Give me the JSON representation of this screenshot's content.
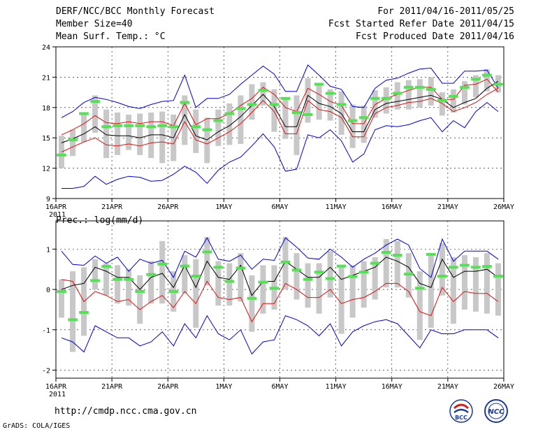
{
  "header": {
    "title": "DERF/NCC/BCC Monthly Forecast",
    "member": "Member Size=40",
    "variable": "Mean Surf. Temp.: °C",
    "period": "For 2011/04/16-2011/05/25",
    "started": "Fcst Started Refer Date 2011/04/15",
    "produced": "Fcst Produced Date 2011/04/16"
  },
  "footer": {
    "url": "http://cmdp.ncc.cma.gov.cn",
    "grads": "GrADS: COLA/IGES",
    "logo1": "BCC",
    "logo2": "NCC"
  },
  "colors": {
    "box": "#c8c8c8",
    "median": "#55e055",
    "mean": "#000000",
    "spread": "#e01010",
    "extreme": "#0000dd"
  },
  "chart_data": [
    {
      "type": "box-line",
      "title": "Mean Surf. Temp.: °C",
      "xlim": [
        0,
        40
      ],
      "x_ticks": [
        {
          "pos": 0,
          "label": "16APR"
        },
        {
          "pos": 5,
          "label": "21APR"
        },
        {
          "pos": 10,
          "label": "26APR"
        },
        {
          "pos": 15,
          "label": "1MAY"
        },
        {
          "pos": 20,
          "label": "6MAY"
        },
        {
          "pos": 25,
          "label": "11MAY"
        },
        {
          "pos": 30,
          "label": "16MAY"
        },
        {
          "pos": 35,
          "label": "21MAY"
        },
        {
          "pos": 40,
          "label": "26MAY"
        }
      ],
      "year_label": "2011",
      "ylim": [
        9,
        24
      ],
      "y_ticks": [
        9,
        12,
        15,
        18,
        21,
        24
      ],
      "series": {
        "max": [
          17.0,
          17.6,
          18.5,
          19.0,
          18.8,
          18.5,
          18.1,
          17.9,
          18.3,
          18.6,
          18.7,
          21.2,
          18.0,
          18.9,
          18.9,
          19.3,
          20.3,
          21.2,
          22.1,
          21.3,
          19.6,
          19.6,
          22.2,
          21.2,
          20.1,
          19.8,
          18.1,
          18.0,
          19.9,
          20.7,
          20.9,
          21.4,
          21.8,
          21.9,
          20.4,
          20.4,
          21.6,
          21.6,
          21.7,
          19.9
        ],
        "p75": [
          15.3,
          15.8,
          16.4,
          17.2,
          16.5,
          16.4,
          16.6,
          16.4,
          16.6,
          16.6,
          16.2,
          18.4,
          16.3,
          16.9,
          16.9,
          17.4,
          18.2,
          18.9,
          20.0,
          19.3,
          18.0,
          17.6,
          19.9,
          19.3,
          18.6,
          18.2,
          16.4,
          16.4,
          18.3,
          18.9,
          19.3,
          19.7,
          20.0,
          20.0,
          18.8,
          18.8,
          20.2,
          20.3,
          20.8,
          19.5
        ],
        "mean": [
          14.5,
          14.9,
          15.4,
          16.1,
          15.3,
          15.2,
          15.2,
          15.0,
          15.3,
          15.3,
          15.0,
          17.3,
          15.2,
          14.8,
          15.6,
          16.2,
          17.1,
          18.2,
          19.3,
          18.1,
          16.1,
          16.1,
          19.2,
          18.4,
          18.1,
          17.4,
          15.6,
          15.6,
          17.8,
          18.4,
          18.6,
          18.8,
          19.0,
          19.2,
          18.8,
          18.0,
          18.5,
          18.9,
          19.9,
          20.6
        ],
        "p25": [
          13.6,
          14.1,
          14.6,
          15.0,
          14.3,
          14.2,
          14.4,
          14.2,
          14.5,
          14.6,
          14.4,
          16.6,
          14.8,
          14.4,
          15.0,
          15.6,
          16.4,
          17.5,
          18.7,
          17.6,
          15.4,
          15.4,
          18.7,
          17.8,
          17.6,
          17.0,
          15.1,
          15.1,
          17.4,
          18.0,
          18.2,
          18.5,
          18.6,
          18.9,
          18.4,
          17.6,
          18.0,
          18.5,
          19.3,
          19.9
        ],
        "min": [
          10.0,
          10.0,
          10.2,
          11.2,
          10.4,
          10.9,
          11.2,
          11.1,
          10.7,
          10.8,
          11.4,
          12.2,
          11.6,
          10.5,
          11.8,
          12.6,
          13.1,
          14.2,
          15.4,
          14.1,
          11.7,
          11.9,
          15.3,
          15.0,
          15.8,
          14.7,
          12.6,
          13.4,
          15.8,
          16.2,
          16.1,
          16.3,
          16.7,
          17.0,
          15.6,
          16.7,
          16.0,
          17.6,
          18.5,
          17.6
        ],
        "box_hi": [
          15.2,
          15.8,
          17.5,
          19.2,
          17.8,
          17.5,
          17.3,
          17.4,
          17.5,
          17.6,
          17.3,
          19.2,
          17.8,
          17.0,
          17.8,
          18.4,
          19.2,
          20.3,
          20.5,
          19.8,
          19.0,
          19.2,
          20.9,
          20.3,
          19.8,
          19.6,
          18.3,
          18.2,
          19.7,
          20.0,
          20.5,
          20.7,
          20.8,
          21.0,
          19.5,
          19.8,
          20.6,
          21.2,
          21.8,
          21.2
        ],
        "box_lo": [
          12.0,
          13.2,
          14.6,
          15.5,
          13.0,
          13.3,
          13.8,
          13.3,
          13.0,
          12.5,
          12.7,
          14.3,
          13.5,
          12.5,
          14.2,
          14.3,
          14.4,
          16.8,
          18.2,
          15.6,
          14.9,
          13.3,
          16.5,
          16.8,
          16.7,
          15.3,
          14.0,
          14.5,
          17.0,
          17.4,
          17.8,
          17.8,
          18.0,
          18.2,
          17.2,
          17.5,
          18.3,
          19.0,
          19.6,
          19.5
        ],
        "median": [
          13.3,
          14.8,
          17.4,
          18.6,
          16.1,
          16.2,
          16.2,
          16.2,
          16.1,
          16.2,
          16.1,
          18.5,
          16.1,
          15.8,
          16.7,
          17.4,
          17.9,
          18.3,
          19.7,
          18.3,
          18.9,
          17.5,
          17.3,
          20.3,
          19.4,
          18.3,
          16.7,
          17.0,
          18.9,
          18.9,
          19.4,
          20.0,
          20.0,
          19.8,
          18.7,
          19.1,
          20.0,
          20.8,
          21.2,
          20.3
        ]
      }
    },
    {
      "type": "box-line",
      "title": "Prec.: log(mm/d)",
      "xlim": [
        0,
        40
      ],
      "x_ticks": [
        {
          "pos": 0,
          "label": "16APR"
        },
        {
          "pos": 5,
          "label": "21APR"
        },
        {
          "pos": 10,
          "label": "26APR"
        },
        {
          "pos": 15,
          "label": "1MAY"
        },
        {
          "pos": 20,
          "label": "6MAY"
        },
        {
          "pos": 25,
          "label": "11MAY"
        },
        {
          "pos": 30,
          "label": "16MAY"
        },
        {
          "pos": 35,
          "label": "21MAY"
        },
        {
          "pos": 40,
          "label": "26MAY"
        }
      ],
      "year_label": "2011",
      "ylim": [
        -2.2,
        1.7
      ],
      "y_ticks": [
        -2,
        -1,
        0,
        1
      ],
      "series": {
        "max": [
          0.95,
          0.62,
          0.6,
          0.83,
          0.65,
          0.8,
          0.45,
          0.75,
          0.65,
          0.72,
          0.3,
          0.95,
          0.8,
          1.28,
          0.75,
          0.7,
          0.85,
          0.5,
          0.75,
          0.72,
          1.28,
          1.05,
          0.78,
          0.75,
          1.0,
          0.8,
          0.55,
          0.75,
          0.9,
          1.1,
          1.25,
          1.1,
          0.52,
          0.3,
          1.25,
          0.7,
          0.95,
          0.95,
          0.95,
          0.75
        ],
        "mean": [
          0.0,
          0.1,
          0.15,
          0.55,
          0.45,
          0.3,
          0.3,
          0.0,
          0.3,
          0.4,
          0.05,
          0.6,
          0.05,
          0.7,
          0.3,
          0.25,
          0.6,
          -0.15,
          0.2,
          0.2,
          0.7,
          0.5,
          0.3,
          0.3,
          0.55,
          0.25,
          0.35,
          0.45,
          0.55,
          0.8,
          0.7,
          0.55,
          0.15,
          0.05,
          0.75,
          0.3,
          0.45,
          0.45,
          0.5,
          0.3
        ],
        "spread_lo": [
          0.25,
          0.2,
          -0.3,
          -0.05,
          -0.15,
          -0.3,
          -0.25,
          -0.5,
          -0.3,
          -0.15,
          -0.45,
          -0.05,
          -0.35,
          0.2,
          -0.2,
          -0.25,
          -0.2,
          -0.8,
          -0.35,
          -0.35,
          0.15,
          0.0,
          -0.2,
          -0.2,
          0.0,
          -0.35,
          -0.25,
          -0.2,
          -0.05,
          0.15,
          0.15,
          -0.05,
          -0.55,
          -0.65,
          0.05,
          -0.3,
          -0.05,
          -0.1,
          -0.1,
          -0.3
        ],
        "min": [
          -1.2,
          -1.3,
          -1.55,
          -0.9,
          -1.05,
          -1.2,
          -1.2,
          -1.4,
          -1.3,
          -1.05,
          -1.4,
          -0.85,
          -1.2,
          -0.65,
          -1.1,
          -1.25,
          -1.0,
          -1.6,
          -1.3,
          -1.25,
          -0.65,
          -0.75,
          -0.9,
          -1.15,
          -0.85,
          -1.4,
          -1.05,
          -0.9,
          -0.8,
          -0.75,
          -0.85,
          -1.15,
          -1.45,
          -1.0,
          -1.1,
          -1.1,
          -1.0,
          -1.0,
          -1.0,
          -1.2
        ],
        "box_hi": [
          0.25,
          0.45,
          0.55,
          0.75,
          0.65,
          0.6,
          0.5,
          0.35,
          0.7,
          1.2,
          0.45,
          0.85,
          0.75,
          1.3,
          0.7,
          0.65,
          0.9,
          0.35,
          0.6,
          0.6,
          1.3,
          0.9,
          0.65,
          0.65,
          0.95,
          0.6,
          0.6,
          0.7,
          0.8,
          1.25,
          1.2,
          0.9,
          0.45,
          0.85,
          1.15,
          0.8,
          0.85,
          0.8,
          0.9,
          0.65
        ],
        "box_lo": [
          -0.7,
          -1.55,
          -1.15,
          0.0,
          -0.15,
          -0.35,
          -0.4,
          -0.85,
          -0.35,
          -0.35,
          -0.55,
          -0.1,
          -0.95,
          0.1,
          -0.4,
          -0.4,
          -0.3,
          -1.05,
          -0.6,
          -0.5,
          0.0,
          -0.25,
          -0.45,
          -0.6,
          -0.2,
          -1.1,
          -0.7,
          -0.45,
          -0.25,
          0.05,
          0.05,
          -0.2,
          -1.25,
          -0.95,
          -0.15,
          -0.85,
          -0.5,
          -0.55,
          -0.6,
          -0.65
        ],
        "median": [
          -0.05,
          -0.75,
          -0.57,
          0.22,
          0.57,
          0.25,
          0.25,
          -0.05,
          0.37,
          0.63,
          -0.05,
          0.58,
          0.33,
          0.93,
          0.55,
          0.2,
          0.53,
          -0.22,
          0.18,
          0.03,
          0.68,
          0.48,
          0.25,
          0.43,
          0.27,
          0.58,
          0.32,
          0.43,
          0.65,
          0.92,
          0.85,
          0.38,
          0.03,
          0.87,
          0.33,
          0.55,
          0.6,
          0.55,
          0.57,
          0.33
        ]
      }
    }
  ]
}
